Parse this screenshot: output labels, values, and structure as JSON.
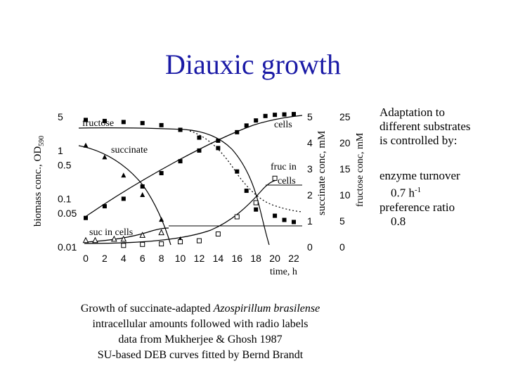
{
  "title": "Diauxic growth",
  "sidebar": {
    "line1": "Adaptation to",
    "line2": "different substrates",
    "line3": "is controlled by:",
    "turnover_label": "enzyme turnover",
    "turnover_value": "0.7",
    "turnover_unit": "h",
    "turnover_exp": "-1",
    "pref_label": "preference ratio",
    "pref_value": "0.8"
  },
  "caption": {
    "line1_pre": "Growth of succinate-adapted ",
    "line1_species": "Azospirillum brasilense",
    "line2": "intracellular amounts followed with radio labels",
    "line3": "data from Mukherjee & Ghosh 1987",
    "line4": "SU-based DEB curves fitted by Bernd Brandt"
  },
  "chart_data": {
    "type": "scatter",
    "title": "",
    "xlabel": "time, h",
    "ylabel_left": "biomass conc., OD",
    "ylabel_left_sub": "590",
    "ylabel_mid": "succinate conc, mM",
    "ylabel_right": "fructose conc, mM",
    "x_ticks": [
      "0",
      "2",
      "4",
      "6",
      "8",
      "10",
      "12",
      "14",
      "16",
      "18",
      "20",
      "22"
    ],
    "left_ticks": [
      "5",
      "1",
      "0.5",
      "0.1",
      "0.05",
      "0.01"
    ],
    "left_ticks_log": true,
    "mid_ticks": [
      "5",
      "4",
      "3",
      "2",
      "1",
      "0"
    ],
    "right_ticks": [
      "25",
      "20",
      "15",
      "10",
      "5",
      "0"
    ],
    "xlim": [
      0,
      22
    ],
    "annotations": {
      "fructose": "fructose",
      "succinate": "succinate",
      "cells": "cells",
      "fruc_in_cells_1": "fruc in",
      "fruc_in_cells_2": "cells",
      "suc_in_cells": "suc in cells"
    },
    "series": [
      {
        "name": "fructose",
        "marker": "filled-square",
        "axis": "fructose conc, mM",
        "points": [
          [
            0,
            24.4
          ],
          [
            2,
            24.2
          ],
          [
            4,
            24.0
          ],
          [
            6,
            23.8
          ],
          [
            8,
            23.4
          ],
          [
            10,
            22.5
          ],
          [
            12,
            21.0
          ],
          [
            14,
            19.0
          ],
          [
            16,
            14.5
          ],
          [
            17,
            10.8
          ],
          [
            18,
            7.2
          ],
          [
            20,
            6.0
          ],
          [
            21,
            5.2
          ],
          [
            22,
            4.8
          ]
        ]
      },
      {
        "name": "succinate",
        "marker": "filled-triangle",
        "axis": "succinate conc, mM",
        "points": [
          [
            0,
            3.9
          ],
          [
            2,
            3.45
          ],
          [
            4,
            2.75
          ],
          [
            6,
            2.0
          ],
          [
            8,
            1.05
          ],
          [
            10,
            0.3
          ]
        ]
      },
      {
        "name": "cells",
        "marker": "filled-square",
        "axis": "biomass conc., OD590",
        "points": [
          [
            0,
            0.04
          ],
          [
            2,
            0.07
          ],
          [
            4,
            0.1
          ],
          [
            6,
            0.18
          ],
          [
            8,
            0.34
          ],
          [
            10,
            0.6
          ],
          [
            12,
            1.0
          ],
          [
            14,
            1.6
          ],
          [
            16,
            2.4
          ],
          [
            17,
            3.3
          ],
          [
            18,
            4.2
          ],
          [
            19,
            5.2
          ],
          [
            20,
            5.5
          ],
          [
            21,
            5.6
          ],
          [
            22,
            5.7
          ]
        ]
      },
      {
        "name": "fruc in cells",
        "marker": "open-square",
        "axis": "fructose conc, mM",
        "points": [
          [
            4,
            0.3
          ],
          [
            6,
            0.5
          ],
          [
            8,
            0.6
          ],
          [
            10,
            1.0
          ],
          [
            12,
            1.2
          ],
          [
            14,
            2.5
          ],
          [
            16,
            5.8
          ],
          [
            18,
            8.5
          ],
          [
            20,
            13.2
          ]
        ]
      },
      {
        "name": "suc in cells",
        "marker": "open-triangle",
        "axis": "succinate conc, mM",
        "points": [
          [
            0,
            0.25
          ],
          [
            1,
            0.25
          ],
          [
            3,
            0.3
          ],
          [
            4,
            0.3
          ],
          [
            6,
            0.45
          ],
          [
            8,
            0.55
          ]
        ]
      }
    ]
  }
}
